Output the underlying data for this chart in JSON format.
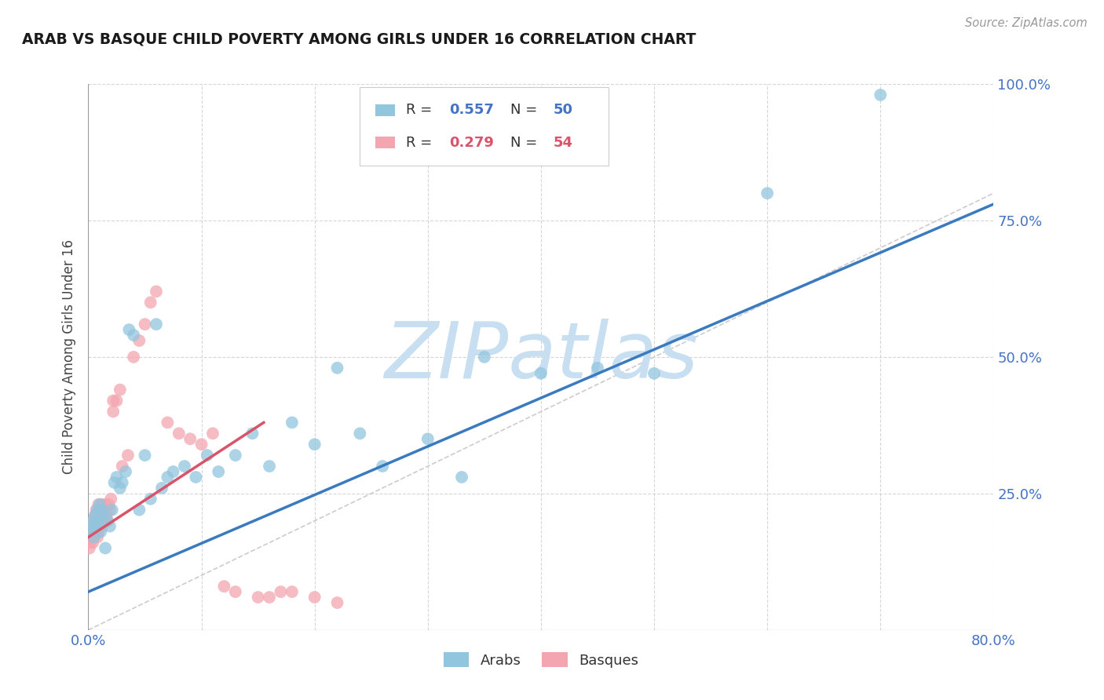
{
  "title": "ARAB VS BASQUE CHILD POVERTY AMONG GIRLS UNDER 16 CORRELATION CHART",
  "source": "Source: ZipAtlas.com",
  "ylabel": "Child Poverty Among Girls Under 16",
  "xlim": [
    0,
    0.8
  ],
  "ylim": [
    0,
    1.0
  ],
  "arab_R": 0.557,
  "arab_N": 50,
  "basque_R": 0.279,
  "basque_N": 54,
  "arab_color": "#92c5de",
  "basque_color": "#f4a6b0",
  "arab_line_color": "#3a7abf",
  "basque_line_color": "#d9546a",
  "watermark": "ZIPatlas",
  "watermark_color": "#c8dff2",
  "background_color": "#ffffff",
  "arab_x": [
    0.002,
    0.003,
    0.004,
    0.005,
    0.006,
    0.007,
    0.008,
    0.009,
    0.01,
    0.011,
    0.012,
    0.013,
    0.015,
    0.017,
    0.019,
    0.021,
    0.023,
    0.025,
    0.028,
    0.03,
    0.033,
    0.036,
    0.04,
    0.045,
    0.05,
    0.055,
    0.06,
    0.065,
    0.07,
    0.075,
    0.085,
    0.095,
    0.105,
    0.115,
    0.13,
    0.145,
    0.16,
    0.18,
    0.2,
    0.22,
    0.24,
    0.26,
    0.3,
    0.33,
    0.35,
    0.4,
    0.45,
    0.5,
    0.6,
    0.7
  ],
  "arab_y": [
    0.18,
    0.19,
    0.2,
    0.17,
    0.21,
    0.19,
    0.22,
    0.2,
    0.23,
    0.18,
    0.22,
    0.21,
    0.15,
    0.2,
    0.19,
    0.22,
    0.27,
    0.28,
    0.26,
    0.27,
    0.29,
    0.55,
    0.54,
    0.22,
    0.32,
    0.24,
    0.56,
    0.26,
    0.28,
    0.29,
    0.3,
    0.28,
    0.32,
    0.29,
    0.32,
    0.36,
    0.3,
    0.38,
    0.34,
    0.48,
    0.36,
    0.3,
    0.35,
    0.28,
    0.5,
    0.47,
    0.48,
    0.47,
    0.8,
    0.98
  ],
  "basque_x": [
    0.001,
    0.002,
    0.003,
    0.003,
    0.004,
    0.004,
    0.005,
    0.005,
    0.006,
    0.006,
    0.007,
    0.007,
    0.008,
    0.008,
    0.009,
    0.009,
    0.01,
    0.01,
    0.011,
    0.011,
    0.012,
    0.012,
    0.013,
    0.014,
    0.015,
    0.016,
    0.017,
    0.018,
    0.019,
    0.02,
    0.022,
    0.022,
    0.025,
    0.028,
    0.03,
    0.035,
    0.04,
    0.045,
    0.05,
    0.055,
    0.06,
    0.07,
    0.08,
    0.09,
    0.1,
    0.11,
    0.12,
    0.13,
    0.15,
    0.16,
    0.17,
    0.18,
    0.2,
    0.22
  ],
  "basque_y": [
    0.15,
    0.16,
    0.17,
    0.18,
    0.16,
    0.19,
    0.17,
    0.2,
    0.18,
    0.21,
    0.19,
    0.22,
    0.17,
    0.2,
    0.18,
    0.23,
    0.19,
    0.22,
    0.2,
    0.21,
    0.19,
    0.23,
    0.2,
    0.22,
    0.23,
    0.21,
    0.2,
    0.23,
    0.22,
    0.24,
    0.4,
    0.42,
    0.42,
    0.44,
    0.3,
    0.32,
    0.5,
    0.53,
    0.56,
    0.6,
    0.62,
    0.38,
    0.36,
    0.35,
    0.34,
    0.36,
    0.08,
    0.07,
    0.06,
    0.06,
    0.07,
    0.07,
    0.06,
    0.05
  ],
  "arab_line_x0": 0.0,
  "arab_line_y0": 0.07,
  "arab_line_x1": 0.8,
  "arab_line_y1": 0.78,
  "basque_line_x0": 0.0,
  "basque_line_y0": 0.17,
  "basque_line_x1": 0.155,
  "basque_line_y1": 0.38
}
